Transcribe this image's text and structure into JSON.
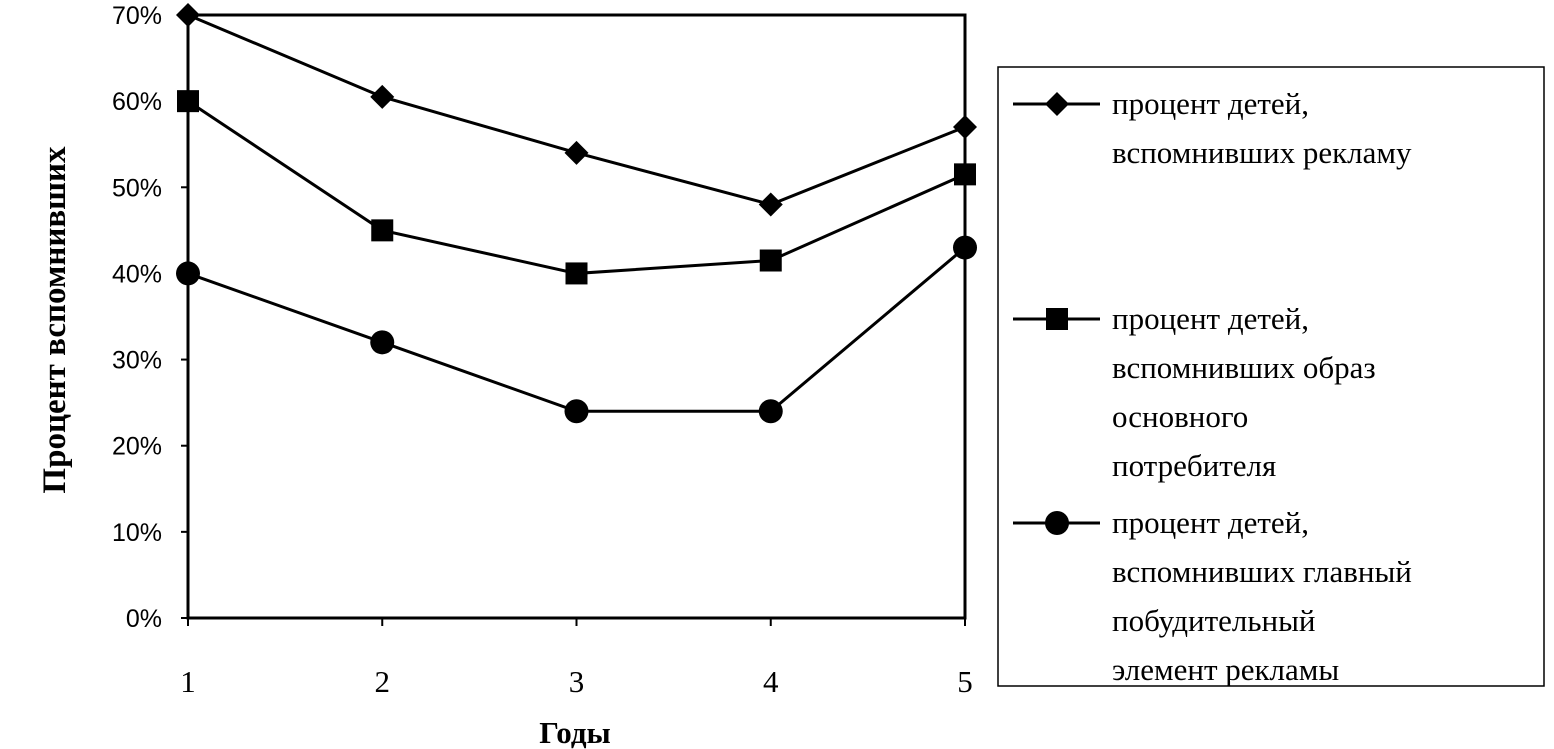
{
  "chart_data": {
    "type": "line",
    "x": [
      1,
      2,
      3,
      4,
      5
    ],
    "xlabel": "Годы",
    "ylabel": "Процент вспомнивших",
    "ylim": [
      0,
      70
    ],
    "yticks": [
      "0%",
      "10%",
      "20%",
      "30%",
      "40%",
      "50%",
      "60%",
      "70%"
    ],
    "xticks": [
      "1",
      "2",
      "3",
      "4",
      "5"
    ],
    "grid": false,
    "legend_position": "right",
    "series": [
      {
        "name": "процент детей, вспомнивших рекламу",
        "name_lines": [
          "процент детей,",
          "вспомнивших рекламу"
        ],
        "marker": "diamond",
        "values": [
          70,
          60.5,
          54,
          48,
          57
        ]
      },
      {
        "name": "процент детей, вспомнивших образ основного потребителя",
        "name_lines": [
          "процент детей,",
          "вспомнивших образ",
          "основного",
          "потребителя"
        ],
        "marker": "square",
        "values": [
          60,
          45,
          40,
          41.5,
          51.5
        ]
      },
      {
        "name": "процент детей, вспомнивших главный побудительный элемент рекламы",
        "name_lines": [
          "процент детей,",
          "вспомнивших главный",
          "побудительный",
          "элемент рекламы"
        ],
        "marker": "circle",
        "values": [
          40,
          32,
          24,
          24,
          43
        ]
      }
    ]
  }
}
